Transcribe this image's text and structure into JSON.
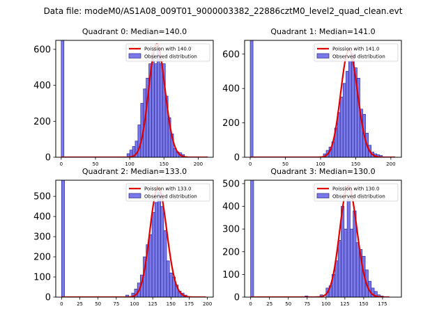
{
  "figure_title": "Data file: modeM0/AS1A08_009T01_9000003382_22886cztM0_level2_quad_clean.evt",
  "chart_data": [
    {
      "type": "bar",
      "title": "Quadrant 0: Median=140.0",
      "median": 140.0,
      "legend": [
        "Poission with 140.0",
        "Observed distribution"
      ],
      "legend_position": "top-right",
      "xlim": [
        -8,
        222
      ],
      "ylim": [
        0,
        650
      ],
      "xticks": [
        0,
        50,
        100,
        150,
        200
      ],
      "yticks": [
        0,
        200,
        400,
        600
      ],
      "bin_width": 4,
      "bin_starts": [
        0,
        96,
        100,
        104,
        108,
        112,
        116,
        120,
        124,
        128,
        132,
        136,
        140,
        144,
        148,
        152,
        156,
        160,
        164,
        168,
        172,
        176
      ],
      "counts": [
        650,
        20,
        40,
        60,
        90,
        180,
        300,
        380,
        440,
        520,
        580,
        520,
        600,
        520,
        520,
        340,
        220,
        130,
        50,
        30,
        25,
        15
      ],
      "poisson_peak": 630,
      "poisson_xmax": 214
    },
    {
      "type": "bar",
      "title": "Quadrant 1: Median=141.0",
      "median": 141.0,
      "legend": [
        "Poission with 141.0",
        "Observed distribution"
      ],
      "legend_position": "top-right",
      "xlim": [
        -8,
        215
      ],
      "ylim": [
        0,
        680
      ],
      "xticks": [
        0,
        50,
        100,
        150,
        200
      ],
      "yticks": [
        0,
        200,
        400,
        600
      ],
      "bin_width": 4,
      "bin_starts": [
        0,
        104,
        108,
        112,
        116,
        120,
        124,
        128,
        132,
        136,
        140,
        144,
        148,
        152,
        156,
        160,
        164,
        168,
        172,
        176,
        180,
        184
      ],
      "counts": [
        680,
        20,
        40,
        60,
        90,
        170,
        260,
        350,
        430,
        500,
        560,
        600,
        520,
        460,
        280,
        250,
        140,
        70,
        30,
        20,
        15,
        10
      ],
      "poisson_peak": 625,
      "poisson_xmax": 206
    },
    {
      "type": "bar",
      "title": "Quadrant 2: Median=133.0",
      "median": 133.0,
      "legend": [
        "Poission with 133.0",
        "Observed distribution"
      ],
      "legend_position": "top-right",
      "xlim": [
        -8,
        208
      ],
      "ylim": [
        0,
        580
      ],
      "xticks": [
        0,
        25,
        50,
        75,
        100,
        125,
        150,
        175,
        200
      ],
      "yticks": [
        0,
        100,
        200,
        300,
        400,
        500
      ],
      "bin_width": 4,
      "bin_starts": [
        0,
        88,
        96,
        100,
        104,
        108,
        112,
        116,
        120,
        124,
        128,
        132,
        136,
        140,
        144,
        148,
        152,
        156,
        160,
        164,
        168
      ],
      "counts": [
        580,
        10,
        20,
        40,
        70,
        110,
        200,
        260,
        310,
        420,
        470,
        520,
        450,
        330,
        180,
        120,
        100,
        60,
        30,
        20,
        10
      ],
      "poisson_peak": 545,
      "poisson_xmax": 198
    },
    {
      "type": "bar",
      "title": "Quadrant 3: Median=130.0",
      "median": 130.0,
      "legend": [
        "Poission with 130.0",
        "Observed distribution"
      ],
      "legend_position": "top-right",
      "xlim": [
        -8,
        200
      ],
      "ylim": [
        0,
        515
      ],
      "xticks": [
        0,
        25,
        50,
        75,
        100,
        125,
        150,
        175
      ],
      "yticks": [
        0,
        100,
        200,
        300,
        400,
        500
      ],
      "bin_width": 4,
      "bin_starts": [
        0,
        72,
        92,
        100,
        104,
        108,
        112,
        116,
        120,
        124,
        128,
        132,
        136,
        140,
        144,
        148,
        152,
        156,
        160,
        164,
        168,
        172
      ],
      "counts": [
        515,
        5,
        10,
        40,
        50,
        100,
        160,
        250,
        400,
        300,
        430,
        300,
        380,
        240,
        210,
        180,
        120,
        70,
        40,
        25,
        10,
        5
      ],
      "poisson_peak": 490,
      "poisson_xmax": 184
    }
  ]
}
